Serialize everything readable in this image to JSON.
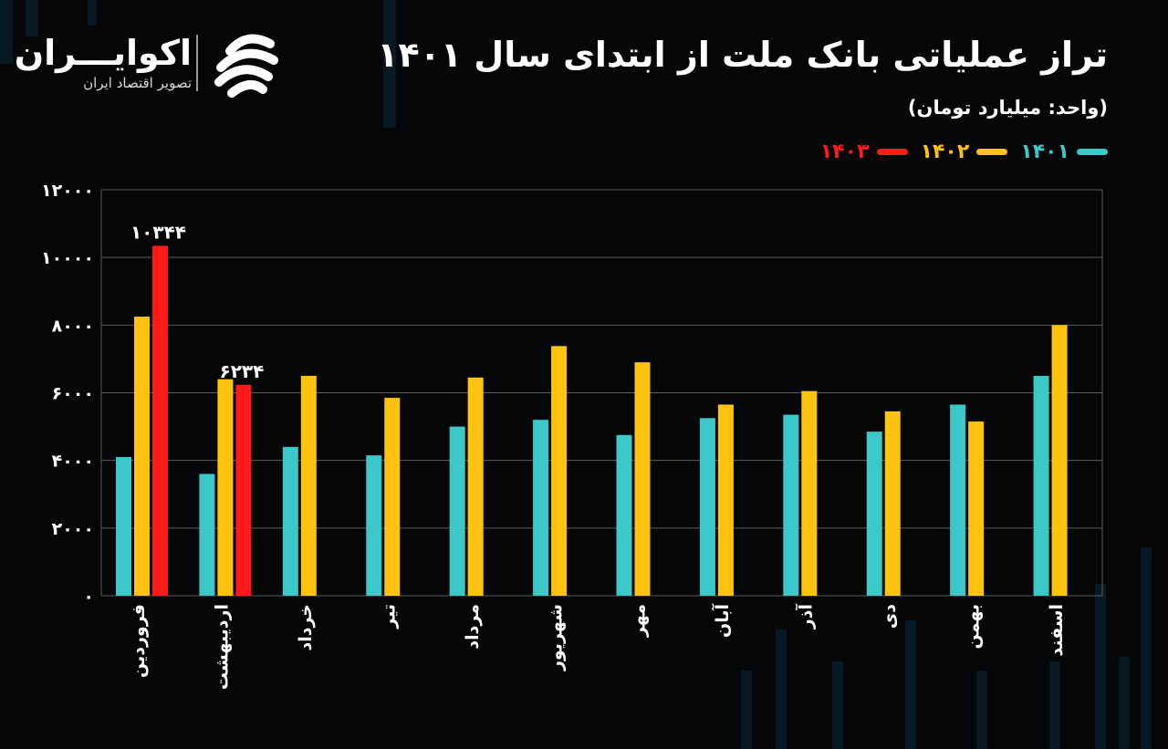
{
  "header": {
    "title": "تراز عملیاتی بانک ملت از ابتدای سال ۱۴۰۱",
    "unit": "(واحد: میلیارد تومان)"
  },
  "brand": {
    "name": "اکوایـــران",
    "tagline": "تصویر اقتصاد ایران"
  },
  "colors": {
    "background": "#050607",
    "grid": "#5a5a5a",
    "series_1401": "#3cc8c8",
    "series_1402": "#ffc20e",
    "series_1403": "#ff1a1a"
  },
  "chart_data": {
    "type": "bar",
    "title": "تراز عملیاتی بانک ملت از ابتدای سال ۱۴۰۱",
    "subtitle": "(واحد: میلیارد تومان)",
    "categories": [
      "فروردین",
      "اردیبهشت",
      "خرداد",
      "تیر",
      "مرداد",
      "شهریور",
      "مهر",
      "آبان",
      "آذر",
      "دی",
      "بهمن",
      "اسفند"
    ],
    "series": [
      {
        "name": "۱۴۰۱",
        "color": "#3cc8c8",
        "values": [
          4100,
          3600,
          4400,
          4150,
          5000,
          5200,
          4750,
          5250,
          5350,
          4850,
          5650,
          6500
        ]
      },
      {
        "name": "۱۴۰۲",
        "color": "#ffc20e",
        "values": [
          8250,
          6400,
          6500,
          5850,
          6450,
          7380,
          6900,
          5650,
          6050,
          5450,
          5150,
          8000
        ]
      },
      {
        "name": "۱۴۰۳",
        "color": "#ff1a1a",
        "values": [
          10344,
          6234,
          null,
          null,
          null,
          null,
          null,
          null,
          null,
          null,
          null,
          null
        ]
      }
    ],
    "data_labels": [
      {
        "series": "۱۴۰۳",
        "category": "فروردین",
        "text": "۱۰۳۴۴"
      },
      {
        "series": "۱۴۰۳",
        "category": "اردیبهشت",
        "text": "۶۲۳۴"
      }
    ],
    "yticks": [
      0,
      2000,
      4000,
      6000,
      8000,
      10000,
      12000
    ],
    "ytick_labels": [
      "۰",
      "۲۰۰۰",
      "۴۰۰۰",
      "۶۰۰۰",
      "۸۰۰۰",
      "۱۰۰۰۰",
      "۱۲۰۰۰"
    ],
    "ylim": [
      0,
      12000
    ],
    "grid": true,
    "legend_position": "top-right"
  }
}
